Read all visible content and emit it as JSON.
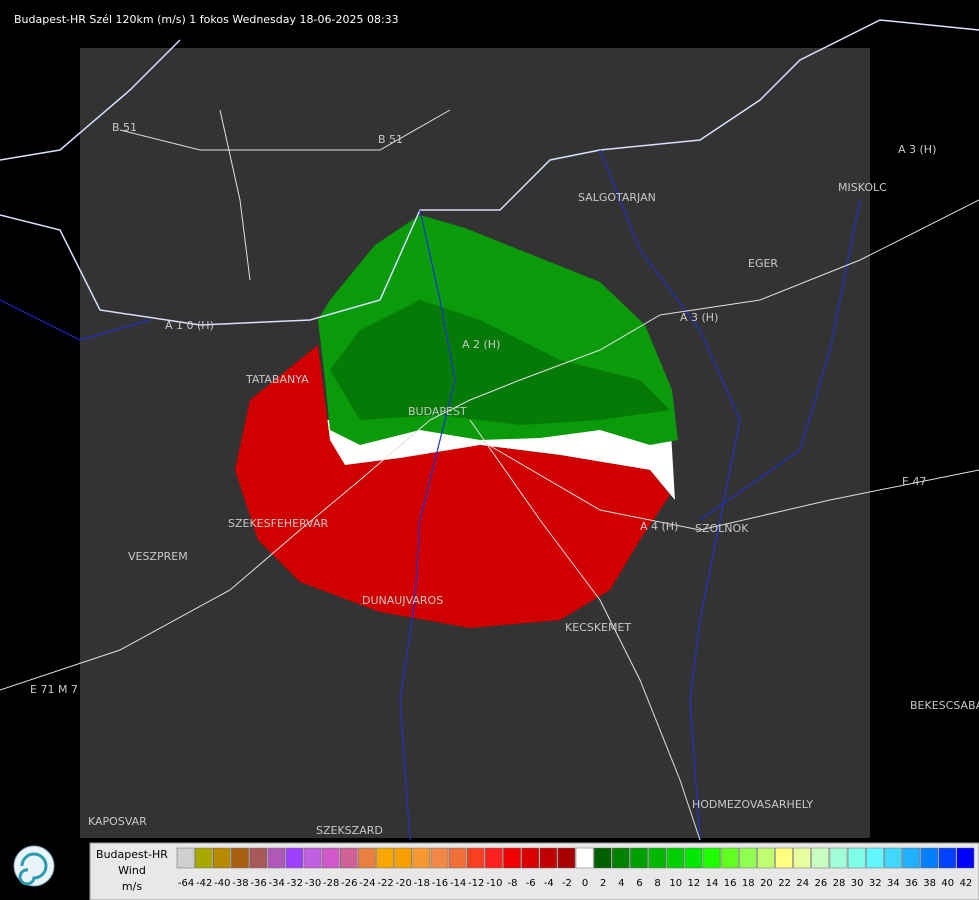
{
  "header": {
    "title": "Budapest-HR Szél 120km (m/s) 1 fokos Wednesday 18-06-2025 08:33"
  },
  "map_labels": [
    "B 51",
    "B 51",
    "A 3 (H)",
    "MISKOLC",
    "SALGOTARJAN",
    "EGER",
    "A 3 (H)",
    "A 1 0 (H)",
    "TATABANYA",
    "A 2 (H)",
    "BUDAPEST",
    "SZEKESFEHERVAR",
    "VESZPREM",
    "DUNAUJVAROS",
    "KECSKEMET",
    "A 4 (H)",
    "SZOLNOK",
    "E 47",
    "BEKESCSABA",
    "HODMEZOVASARHELY",
    "KAPOSVAR",
    "SZEKSZARD",
    "E 71 M 7"
  ],
  "legend": {
    "station": "Budapest-HR",
    "quantity": "Wind",
    "unit": "m/s",
    "labels": [
      "-64",
      "-42",
      "-40",
      "-38",
      "-36",
      "-34",
      "-32",
      "-30",
      "-28",
      "-26",
      "-24",
      "-22",
      "-20",
      "-18",
      "-16",
      "-14",
      "-12",
      "-10",
      "-8",
      "-6",
      "-4",
      "-2",
      "0",
      "2",
      "4",
      "6",
      "8",
      "10",
      "12",
      "14",
      "16",
      "18",
      "20",
      "22",
      "24",
      "26",
      "28",
      "30",
      "32",
      "34",
      "36",
      "38",
      "40",
      "42"
    ],
    "colors": [
      "#d0d0d0",
      "#a8a800",
      "#b88a00",
      "#a86010",
      "#a85858",
      "#b058b8",
      "#a040ff",
      "#c060e0",
      "#d058c8",
      "#d06098",
      "#e88040",
      "#f8a800",
      "#f8a000",
      "#f89830",
      "#f08848",
      "#f07038",
      "#f84020",
      "#ff2020",
      "#f00000",
      "#d80000",
      "#c00000",
      "#a80000",
      "#ffffff",
      "#006000",
      "#008000",
      "#00a000",
      "#00b800",
      "#00d000",
      "#00e800",
      "#20ff00",
      "#60ff20",
      "#90ff50",
      "#c0ff70",
      "#ffff80",
      "#e8ffa0",
      "#c8ffc0",
      "#a0ffd8",
      "#80ffe8",
      "#60f8ff",
      "#40d8ff",
      "#20b0ff",
      "#0080ff",
      "#0040ff",
      "#0000ff"
    ]
  }
}
